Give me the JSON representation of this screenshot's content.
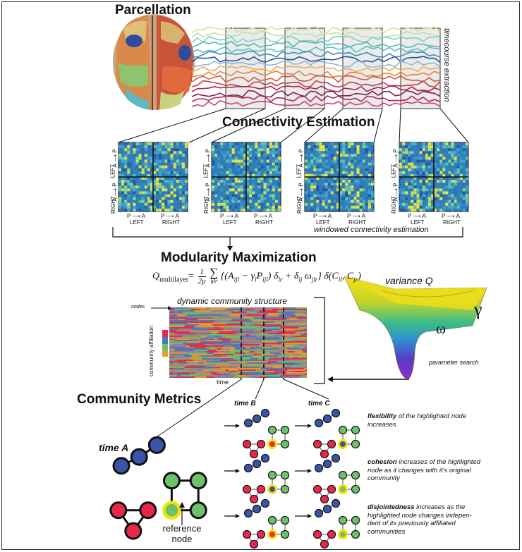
{
  "headings": {
    "parcellation": "Parcellation",
    "connectivity": "Connectivity Estimation",
    "modularity": "Modularity Maximization",
    "community_metrics": "Community Metrics"
  },
  "labels": {
    "timecourse": "timecourse extraction",
    "windowed": "windowed connectivity estimation",
    "dynamic": "dynamic community structure",
    "nodes": "nodes",
    "community_affiliation": "community affiliation",
    "time": "time",
    "variance_q": "variance Q",
    "gamma": "γ",
    "omega": "ω",
    "parameter_search": "parameter search",
    "time_a": "time A",
    "time_b": "time B",
    "time_c": "time C",
    "reference_line1": "reference",
    "reference_line2": "node"
  },
  "matrix_axis": {
    "left": "LEFT",
    "right": "RIGHT",
    "p": "P",
    "a": "A",
    "arrow": "⟶"
  },
  "formula": {
    "q": "Q",
    "sub": "multilayer",
    "eq": "=",
    "frac_num": "1",
    "frac_den": "2μ",
    "sum": "∑",
    "sum_sub": "ijlr",
    "body": "{(A",
    "body_sub1": "ijl",
    "body2": " − γ",
    "body_sub2": "l",
    "body3": "P",
    "body_sub3": "ijl",
    "body4": ") δ",
    "body_sub4": "lr",
    "body5": " + δ",
    "body_sub5": "ij",
    "body6": " ω",
    "body_sub6": "jlr",
    "body7": "} δ(C",
    "body_sub7": "il",
    "body8": ", C",
    "body_sub8": "jr",
    "body9": ")"
  },
  "annotations": {
    "flex_term": "flexibility",
    "flex_rest1": " of the highlighted node",
    "flex_rest2": "increases",
    "coh_term": "cohesion",
    "coh_rest1": " increases of the highlighted",
    "coh_rest2": "node as it changes with it's original",
    "coh_rest3": "community",
    "dis_term": "disjointedness",
    "dis_rest1": " increases as the",
    "dis_rest2": "highlighted node changes indepen-",
    "dis_rest3": "dent of its previously affiliated",
    "dis_rest4": "communities"
  },
  "colors": {
    "red": "#e8274b",
    "blue": "#3a55a8",
    "green": "#6cc16a",
    "yellow": "#f2e500",
    "orange": "#f39a2c",
    "matrix_base": "#2f7fb8"
  },
  "community_colors": [
    "#e8274b",
    "#4a79b8",
    "#6cc16a",
    "#f39a2c"
  ]
}
